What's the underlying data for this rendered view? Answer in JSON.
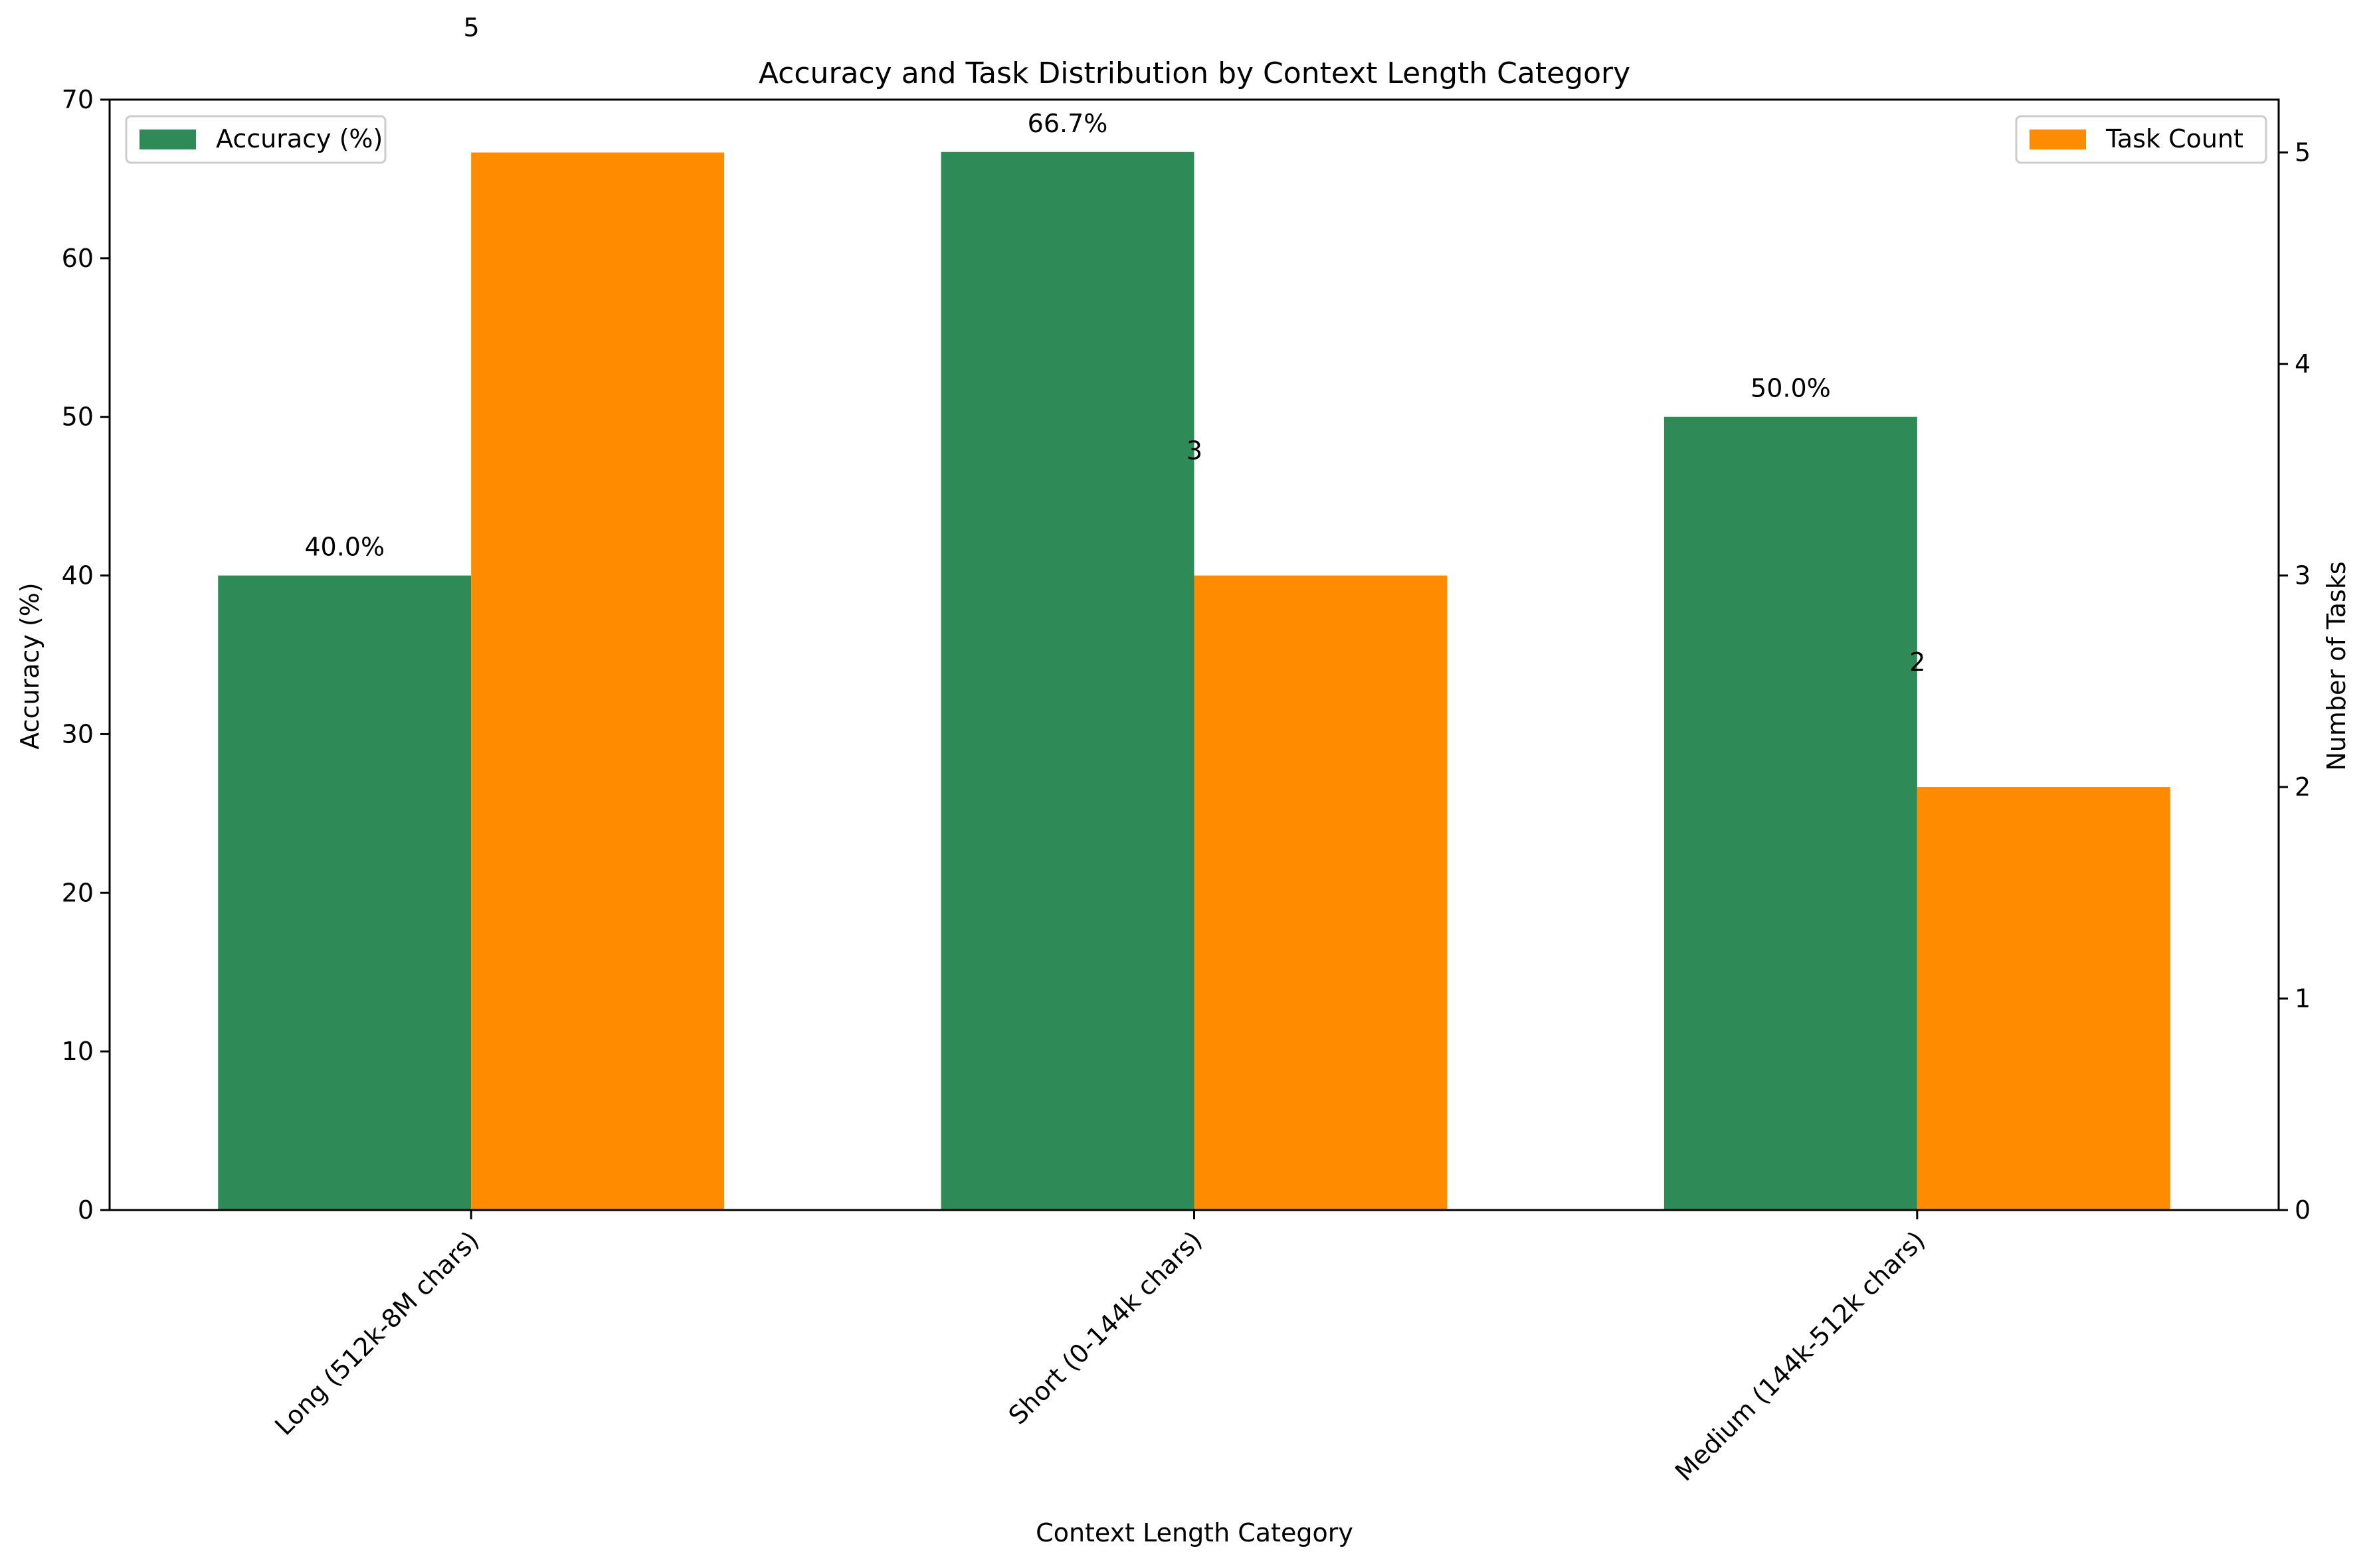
{
  "chart_data": {
    "type": "bar",
    "title": "Accuracy and Task Distribution by Context Length Category",
    "xlabel": "Context Length Category",
    "categories": [
      "Long (512k-8M chars)",
      "Short (0-144k chars)",
      "Medium (144k-512k chars)"
    ],
    "series": [
      {
        "name": "Accuracy (%)",
        "axis": "left",
        "color": "#2e8b57",
        "values": [
          40.0,
          66.7,
          50.0
        ],
        "labels": [
          "40.0%",
          "66.7%",
          "50.0%"
        ]
      },
      {
        "name": "Task Count",
        "axis": "right",
        "color": "#ff8c00",
        "values": [
          5,
          3,
          2
        ],
        "labels": [
          "5",
          "3",
          "2"
        ]
      }
    ],
    "y_left": {
      "label": "Accuracy (%)",
      "label_color": "#2e8b57",
      "ylim": [
        0,
        70
      ],
      "ticks": [
        0,
        10,
        20,
        30,
        40,
        50,
        60,
        70
      ]
    },
    "y_right": {
      "label": "Number of Tasks",
      "label_color": "#ff8c00",
      "ylim": [
        0,
        5.25
      ],
      "ticks": [
        0,
        1,
        2,
        3,
        4,
        5
      ]
    },
    "grid": false,
    "legends": [
      {
        "placement": "top-left",
        "entry": "Accuracy (%)"
      },
      {
        "placement": "top-right",
        "entry": "Task Count"
      }
    ]
  }
}
